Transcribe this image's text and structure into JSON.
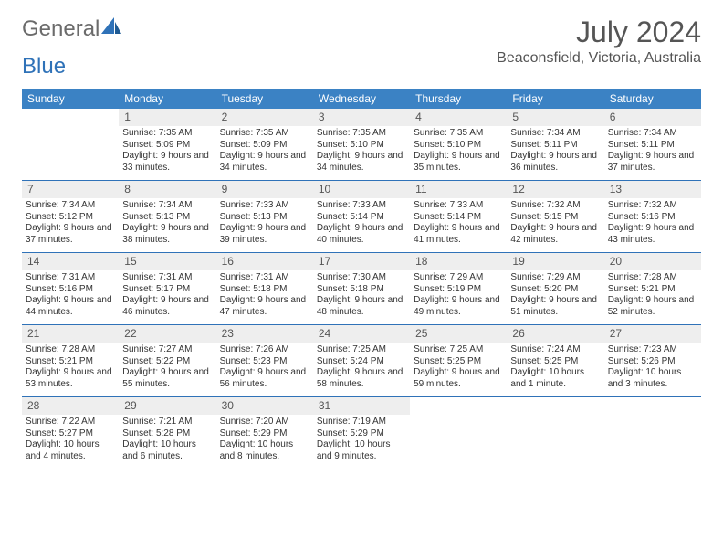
{
  "brand": {
    "name_a": "General",
    "name_b": "Blue"
  },
  "title": "July 2024",
  "location": "Beaconsfield, Victoria, Australia",
  "colors": {
    "header_bg": "#3b82c4",
    "header_text": "#ffffff",
    "daynum_bg": "#eeeeee",
    "body_text": "#333333",
    "rule": "#2f72b8",
    "brand_gray": "#6b6b6b",
    "brand_blue": "#2f72b8"
  },
  "day_names": [
    "Sunday",
    "Monday",
    "Tuesday",
    "Wednesday",
    "Thursday",
    "Friday",
    "Saturday"
  ],
  "weeks": [
    [
      null,
      {
        "n": "1",
        "sr": "Sunrise: 7:35 AM",
        "ss": "Sunset: 5:09 PM",
        "dl": "Daylight: 9 hours and 33 minutes."
      },
      {
        "n": "2",
        "sr": "Sunrise: 7:35 AM",
        "ss": "Sunset: 5:09 PM",
        "dl": "Daylight: 9 hours and 34 minutes."
      },
      {
        "n": "3",
        "sr": "Sunrise: 7:35 AM",
        "ss": "Sunset: 5:10 PM",
        "dl": "Daylight: 9 hours and 34 minutes."
      },
      {
        "n": "4",
        "sr": "Sunrise: 7:35 AM",
        "ss": "Sunset: 5:10 PM",
        "dl": "Daylight: 9 hours and 35 minutes."
      },
      {
        "n": "5",
        "sr": "Sunrise: 7:34 AM",
        "ss": "Sunset: 5:11 PM",
        "dl": "Daylight: 9 hours and 36 minutes."
      },
      {
        "n": "6",
        "sr": "Sunrise: 7:34 AM",
        "ss": "Sunset: 5:11 PM",
        "dl": "Daylight: 9 hours and 37 minutes."
      }
    ],
    [
      {
        "n": "7",
        "sr": "Sunrise: 7:34 AM",
        "ss": "Sunset: 5:12 PM",
        "dl": "Daylight: 9 hours and 37 minutes."
      },
      {
        "n": "8",
        "sr": "Sunrise: 7:34 AM",
        "ss": "Sunset: 5:13 PM",
        "dl": "Daylight: 9 hours and 38 minutes."
      },
      {
        "n": "9",
        "sr": "Sunrise: 7:33 AM",
        "ss": "Sunset: 5:13 PM",
        "dl": "Daylight: 9 hours and 39 minutes."
      },
      {
        "n": "10",
        "sr": "Sunrise: 7:33 AM",
        "ss": "Sunset: 5:14 PM",
        "dl": "Daylight: 9 hours and 40 minutes."
      },
      {
        "n": "11",
        "sr": "Sunrise: 7:33 AM",
        "ss": "Sunset: 5:14 PM",
        "dl": "Daylight: 9 hours and 41 minutes."
      },
      {
        "n": "12",
        "sr": "Sunrise: 7:32 AM",
        "ss": "Sunset: 5:15 PM",
        "dl": "Daylight: 9 hours and 42 minutes."
      },
      {
        "n": "13",
        "sr": "Sunrise: 7:32 AM",
        "ss": "Sunset: 5:16 PM",
        "dl": "Daylight: 9 hours and 43 minutes."
      }
    ],
    [
      {
        "n": "14",
        "sr": "Sunrise: 7:31 AM",
        "ss": "Sunset: 5:16 PM",
        "dl": "Daylight: 9 hours and 44 minutes."
      },
      {
        "n": "15",
        "sr": "Sunrise: 7:31 AM",
        "ss": "Sunset: 5:17 PM",
        "dl": "Daylight: 9 hours and 46 minutes."
      },
      {
        "n": "16",
        "sr": "Sunrise: 7:31 AM",
        "ss": "Sunset: 5:18 PM",
        "dl": "Daylight: 9 hours and 47 minutes."
      },
      {
        "n": "17",
        "sr": "Sunrise: 7:30 AM",
        "ss": "Sunset: 5:18 PM",
        "dl": "Daylight: 9 hours and 48 minutes."
      },
      {
        "n": "18",
        "sr": "Sunrise: 7:29 AM",
        "ss": "Sunset: 5:19 PM",
        "dl": "Daylight: 9 hours and 49 minutes."
      },
      {
        "n": "19",
        "sr": "Sunrise: 7:29 AM",
        "ss": "Sunset: 5:20 PM",
        "dl": "Daylight: 9 hours and 51 minutes."
      },
      {
        "n": "20",
        "sr": "Sunrise: 7:28 AM",
        "ss": "Sunset: 5:21 PM",
        "dl": "Daylight: 9 hours and 52 minutes."
      }
    ],
    [
      {
        "n": "21",
        "sr": "Sunrise: 7:28 AM",
        "ss": "Sunset: 5:21 PM",
        "dl": "Daylight: 9 hours and 53 minutes."
      },
      {
        "n": "22",
        "sr": "Sunrise: 7:27 AM",
        "ss": "Sunset: 5:22 PM",
        "dl": "Daylight: 9 hours and 55 minutes."
      },
      {
        "n": "23",
        "sr": "Sunrise: 7:26 AM",
        "ss": "Sunset: 5:23 PM",
        "dl": "Daylight: 9 hours and 56 minutes."
      },
      {
        "n": "24",
        "sr": "Sunrise: 7:25 AM",
        "ss": "Sunset: 5:24 PM",
        "dl": "Daylight: 9 hours and 58 minutes."
      },
      {
        "n": "25",
        "sr": "Sunrise: 7:25 AM",
        "ss": "Sunset: 5:25 PM",
        "dl": "Daylight: 9 hours and 59 minutes."
      },
      {
        "n": "26",
        "sr": "Sunrise: 7:24 AM",
        "ss": "Sunset: 5:25 PM",
        "dl": "Daylight: 10 hours and 1 minute."
      },
      {
        "n": "27",
        "sr": "Sunrise: 7:23 AM",
        "ss": "Sunset: 5:26 PM",
        "dl": "Daylight: 10 hours and 3 minutes."
      }
    ],
    [
      {
        "n": "28",
        "sr": "Sunrise: 7:22 AM",
        "ss": "Sunset: 5:27 PM",
        "dl": "Daylight: 10 hours and 4 minutes."
      },
      {
        "n": "29",
        "sr": "Sunrise: 7:21 AM",
        "ss": "Sunset: 5:28 PM",
        "dl": "Daylight: 10 hours and 6 minutes."
      },
      {
        "n": "30",
        "sr": "Sunrise: 7:20 AM",
        "ss": "Sunset: 5:29 PM",
        "dl": "Daylight: 10 hours and 8 minutes."
      },
      {
        "n": "31",
        "sr": "Sunrise: 7:19 AM",
        "ss": "Sunset: 5:29 PM",
        "dl": "Daylight: 10 hours and 9 minutes."
      },
      null,
      null,
      null
    ]
  ]
}
